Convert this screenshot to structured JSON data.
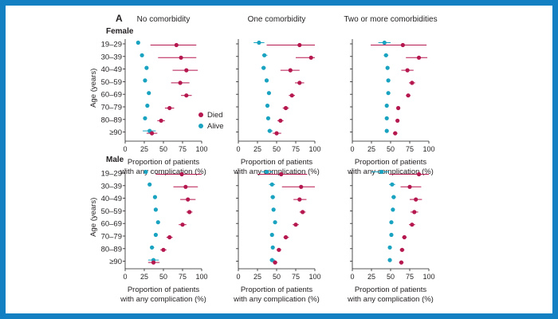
{
  "panel_label": "A",
  "colors": {
    "died": "#b5174f",
    "alive": "#1aa3c0",
    "axis": "#231f20"
  },
  "chart_data": {
    "type": "forest",
    "columns": [
      "No comorbidity",
      "One comorbidity",
      "Two or more comorbidities"
    ],
    "rows": [
      "Female",
      "Male"
    ],
    "age_groups": [
      "19–29",
      "30–39",
      "40–49",
      "50–59",
      "60–69",
      "70–79",
      "80–89",
      "≥90"
    ],
    "ylabel": "Age (years)",
    "xlabel_line1": "Proportion of patients",
    "xlabel_line2": "with any complication (%)",
    "xlim": [
      0,
      100
    ],
    "xticks": [
      "0",
      "25",
      "50",
      "75",
      "100"
    ],
    "legend": {
      "position": "bottom-right of first panel",
      "died": "Died",
      "alive": "Alive"
    },
    "panels": [
      {
        "sex": "Female",
        "comorbidity": "No comorbidity",
        "died": [
          [
            67,
            33,
            93
          ],
          [
            73,
            43,
            93
          ],
          [
            80,
            62,
            95
          ],
          [
            72,
            60,
            84
          ],
          [
            80,
            73,
            87
          ],
          [
            58,
            52,
            64
          ],
          [
            47,
            42,
            52
          ],
          [
            35,
            28,
            42
          ]
        ],
        "alive": [
          [
            17,
            15,
            19
          ],
          [
            22,
            20,
            24
          ],
          [
            28,
            26,
            30
          ],
          [
            26,
            24,
            28
          ],
          [
            31,
            29,
            33
          ],
          [
            29,
            27,
            31
          ],
          [
            26,
            24,
            28
          ],
          [
            32,
            23,
            40
          ]
        ]
      },
      {
        "sex": "Female",
        "comorbidity": "One comorbidity",
        "died": [
          [
            80,
            37,
            100
          ],
          [
            95,
            75,
            100
          ],
          [
            68,
            55,
            80
          ],
          [
            80,
            74,
            86
          ],
          [
            70,
            66,
            74
          ],
          [
            62,
            58,
            66
          ],
          [
            55,
            51,
            59
          ],
          [
            50,
            45,
            56
          ]
        ],
        "alive": [
          [
            27,
            20,
            34
          ],
          [
            34,
            31,
            38
          ],
          [
            33,
            30,
            36
          ],
          [
            37,
            35,
            39
          ],
          [
            40,
            38,
            42
          ],
          [
            38,
            36,
            40
          ],
          [
            39,
            37,
            41
          ],
          [
            41,
            38,
            45
          ]
        ]
      },
      {
        "sex": "Female",
        "comorbidity": "Two or more comorbidities",
        "died": [
          [
            66,
            24,
            97
          ],
          [
            87,
            70,
            98
          ],
          [
            72,
            64,
            80
          ],
          [
            78,
            74,
            82
          ],
          [
            73,
            70,
            76
          ],
          [
            60,
            58,
            62
          ],
          [
            59,
            57,
            61
          ],
          [
            56,
            53,
            59
          ]
        ],
        "alive": [
          [
            42,
            34,
            50
          ],
          [
            44,
            41,
            47
          ],
          [
            46,
            44,
            48
          ],
          [
            47,
            45,
            49
          ],
          [
            47,
            45,
            49
          ],
          [
            45,
            44,
            46
          ],
          [
            45,
            44,
            46
          ],
          [
            45,
            44,
            46
          ]
        ]
      },
      {
        "sex": "Male",
        "comorbidity": "No comorbidity",
        "died": [
          [
            74,
            40,
            100
          ],
          [
            79,
            63,
            95
          ],
          [
            82,
            72,
            92
          ],
          [
            84,
            80,
            88
          ],
          [
            75,
            70,
            80
          ],
          [
            58,
            54,
            62
          ],
          [
            50,
            46,
            54
          ],
          [
            37,
            30,
            45
          ]
        ],
        "alive": [
          [
            27,
            25,
            29
          ],
          [
            32,
            30,
            34
          ],
          [
            39,
            37,
            41
          ],
          [
            40,
            38,
            42
          ],
          [
            43,
            41,
            45
          ],
          [
            40,
            38,
            42
          ],
          [
            35,
            33,
            38
          ],
          [
            37,
            30,
            44
          ]
        ]
      },
      {
        "sex": "Male",
        "comorbidity": "One comorbidity",
        "died": [
          [
            56,
            25,
            90
          ],
          [
            82,
            57,
            100
          ],
          [
            80,
            72,
            89
          ],
          [
            84,
            80,
            88
          ],
          [
            75,
            71,
            79
          ],
          [
            62,
            59,
            66
          ],
          [
            53,
            50,
            56
          ],
          [
            48,
            45,
            51
          ]
        ],
        "alive": [
          [
            37,
            30,
            45
          ],
          [
            44,
            40,
            48
          ],
          [
            45,
            42,
            48
          ],
          [
            46,
            44,
            48
          ],
          [
            48,
            46,
            50
          ],
          [
            44,
            42,
            46
          ],
          [
            45,
            43,
            47
          ],
          [
            44,
            41,
            48
          ]
        ]
      },
      {
        "sex": "Male",
        "comorbidity": "Two or more comorbidities",
        "died": [
          [
            87,
            48,
            100
          ],
          [
            75,
            63,
            90
          ],
          [
            83,
            75,
            91
          ],
          [
            81,
            76,
            86
          ],
          [
            78,
            74,
            82
          ],
          [
            68,
            65,
            71
          ],
          [
            65,
            62,
            68
          ],
          [
            64,
            61,
            67
          ]
        ],
        "alive": [
          [
            38,
            25,
            48
          ],
          [
            52,
            48,
            56
          ],
          [
            54,
            51,
            57
          ],
          [
            53,
            51,
            55
          ],
          [
            51,
            49,
            53
          ],
          [
            51,
            49,
            53
          ],
          [
            49,
            47,
            51
          ],
          [
            49,
            47,
            51
          ]
        ]
      }
    ]
  }
}
